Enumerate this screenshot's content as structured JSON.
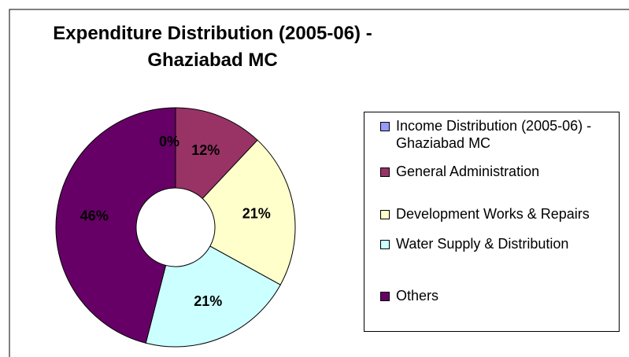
{
  "chart_data": {
    "type": "donut",
    "title": "Expenditure Distribution (2005-06) - Ghaziabad MC",
    "categories": [
      "Income Distribution (2005-06) - Ghaziabad MC",
      "General Administration",
      "Development Works & Repairs",
      "Water Supply & Distribution",
      "Others"
    ],
    "values": [
      0,
      12,
      21,
      21,
      46
    ],
    "value_labels": [
      "0%",
      "12%",
      "21%",
      "21%",
      "46%"
    ],
    "colors": [
      "#9999ff",
      "#993366",
      "#ffffcc",
      "#ccffff",
      "#660066"
    ],
    "legend": "right"
  }
}
